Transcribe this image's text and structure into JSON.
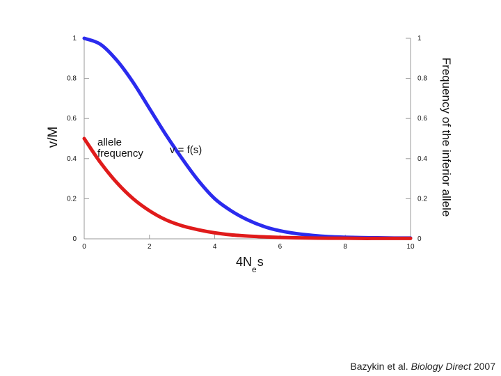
{
  "chart_data": {
    "type": "line",
    "ylabel_left": "v/M",
    "ylabel_right": "Frequency of the inferior allele",
    "xlabel_main": "4N",
    "xlabel_sub": "e",
    "xlabel_tail": "s",
    "xlim": [
      0,
      10
    ],
    "ylim": [
      0,
      1
    ],
    "x_ticks": [
      "0",
      "2",
      "4",
      "6",
      "8",
      "10"
    ],
    "y_ticks": [
      "0",
      "0.2",
      "0.4",
      "0.6",
      "0.8",
      "1"
    ],
    "grid": false,
    "series": [
      {
        "name": "v = f(s)",
        "color": "#2b2bee",
        "x": [
          0,
          0.5,
          1,
          1.5,
          2,
          2.5,
          3,
          3.5,
          4,
          4.5,
          5,
          5.5,
          6,
          6.5,
          7,
          7.5,
          8,
          8.5,
          9,
          9.5,
          10
        ],
        "y": [
          1.0,
          0.97,
          0.89,
          0.78,
          0.65,
          0.52,
          0.4,
          0.29,
          0.2,
          0.14,
          0.095,
          0.062,
          0.04,
          0.026,
          0.017,
          0.011,
          0.008,
          0.006,
          0.005,
          0.004,
          0.004
        ]
      },
      {
        "name": "allele frequency",
        "color": "#e01b1b",
        "x": [
          0,
          0.5,
          1,
          1.5,
          2,
          2.5,
          3,
          3.5,
          4,
          4.5,
          5,
          5.5,
          6,
          6.5,
          7,
          7.5,
          8,
          8.5,
          9,
          9.5,
          10
        ],
        "y": [
          0.5,
          0.38,
          0.28,
          0.2,
          0.14,
          0.095,
          0.065,
          0.045,
          0.03,
          0.02,
          0.014,
          0.01,
          0.007,
          0.005,
          0.004,
          0.003,
          0.003,
          0.002,
          0.002,
          0.002,
          0.002
        ]
      }
    ],
    "annotations": [
      {
        "text": "v = f(s)",
        "series": 0
      },
      {
        "text_line1": "allele",
        "text_line2": "frequency",
        "series": 1
      }
    ]
  },
  "credit": {
    "authors": "Bazykin et al.",
    "journal": "Biology Direct",
    "year": "2007"
  }
}
